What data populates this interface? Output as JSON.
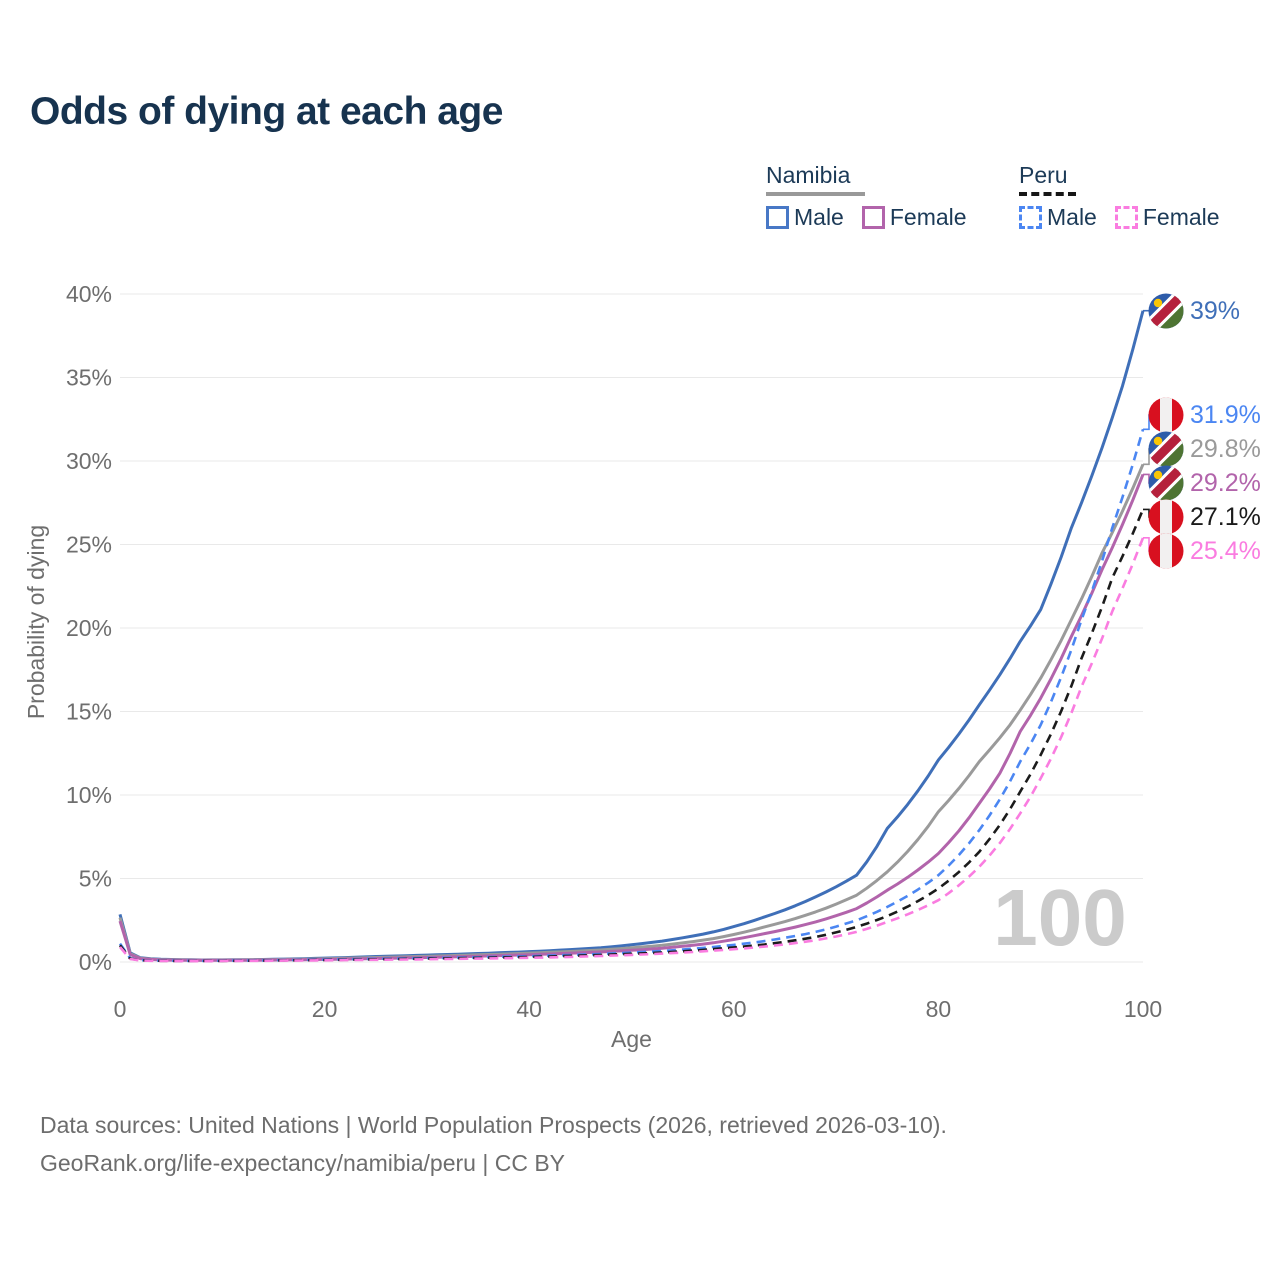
{
  "title": "Odds of dying at each age",
  "legend": {
    "groups": [
      {
        "country": "Namibia",
        "line_style": "solid",
        "underline_color": "#999999",
        "items": [
          {
            "label": "Male",
            "color": "#4878c6"
          },
          {
            "label": "Female",
            "color": "#b264ab"
          }
        ]
      },
      {
        "country": "Peru",
        "line_style": "dashed",
        "underline_color": "#161616",
        "items": [
          {
            "label": "Male",
            "color": "#4b86f2"
          },
          {
            "label": "Female",
            "color": "#fa7ce0"
          }
        ]
      }
    ]
  },
  "watermark": "100",
  "footer": {
    "line1": "Data sources: United Nations | World Population Prospects (2026, retrieved 2026-03-10).",
    "line2": "GeoRank.org/life-expectancy/namibia/peru | CC BY"
  },
  "chart_data": {
    "type": "line",
    "title": "Odds of dying at each age",
    "xlabel": "Age",
    "ylabel": "Probability of dying",
    "x_ticks": [
      0,
      20,
      40,
      60,
      80,
      100
    ],
    "y_ticks_percent": [
      0,
      5,
      10,
      15,
      20,
      25,
      30,
      35,
      40
    ],
    "xlim": [
      0,
      100
    ],
    "ylim_percent": [
      0,
      40
    ],
    "grid": true,
    "legend_position": "top-right",
    "series": [
      {
        "name": "Namibia male",
        "flag": "na",
        "color": "#3f6fb8",
        "dashed": false,
        "end_value_percent": 39.0,
        "end_label": "39%",
        "points_age_percent": [
          [
            0,
            2.85
          ],
          [
            1,
            0.55
          ],
          [
            2,
            0.25
          ],
          [
            4,
            0.16
          ],
          [
            8,
            0.12
          ],
          [
            13,
            0.14
          ],
          [
            18,
            0.2
          ],
          [
            25,
            0.33
          ],
          [
            32,
            0.45
          ],
          [
            40,
            0.62
          ],
          [
            47,
            0.85
          ],
          [
            53,
            1.25
          ],
          [
            58,
            1.8
          ],
          [
            63,
            2.7
          ],
          [
            68,
            3.9
          ],
          [
            72,
            5.2
          ],
          [
            75,
            8.0
          ],
          [
            80,
            12.1
          ],
          [
            84,
            15.4
          ],
          [
            88,
            19.2
          ],
          [
            90,
            21.1
          ],
          [
            93,
            26.0
          ],
          [
            96,
            30.8
          ],
          [
            98,
            34.5
          ],
          [
            100,
            39.0
          ]
        ]
      },
      {
        "name": "Namibia both sexes",
        "flag": "na",
        "color": "#9a9a9a",
        "dashed": false,
        "end_value_percent": 29.8,
        "end_label": "29.8%",
        "points_age_percent": [
          [
            0,
            2.65
          ],
          [
            1,
            0.5
          ],
          [
            2,
            0.22
          ],
          [
            4,
            0.14
          ],
          [
            8,
            0.11
          ],
          [
            13,
            0.13
          ],
          [
            18,
            0.17
          ],
          [
            25,
            0.27
          ],
          [
            32,
            0.38
          ],
          [
            40,
            0.53
          ],
          [
            47,
            0.72
          ],
          [
            53,
            1.0
          ],
          [
            58,
            1.4
          ],
          [
            63,
            2.1
          ],
          [
            68,
            3.0
          ],
          [
            72,
            4.0
          ],
          [
            75,
            5.4
          ],
          [
            80,
            9.0
          ],
          [
            84,
            12.0
          ],
          [
            87,
            14.2
          ],
          [
            90,
            17.0
          ],
          [
            93,
            20.5
          ],
          [
            96,
            24.5
          ],
          [
            98,
            27.0
          ],
          [
            100,
            29.8
          ]
        ]
      },
      {
        "name": "Namibia female",
        "flag": "na",
        "color": "#b264ab",
        "dashed": false,
        "end_value_percent": 29.2,
        "end_label": "29.2%",
        "points_age_percent": [
          [
            0,
            2.45
          ],
          [
            1,
            0.45
          ],
          [
            2,
            0.2
          ],
          [
            4,
            0.12
          ],
          [
            8,
            0.1
          ],
          [
            13,
            0.11
          ],
          [
            18,
            0.14
          ],
          [
            25,
            0.21
          ],
          [
            32,
            0.3
          ],
          [
            40,
            0.44
          ],
          [
            47,
            0.6
          ],
          [
            53,
            0.82
          ],
          [
            58,
            1.15
          ],
          [
            63,
            1.7
          ],
          [
            68,
            2.4
          ],
          [
            72,
            3.2
          ],
          [
            75,
            4.3
          ],
          [
            80,
            6.5
          ],
          [
            84,
            9.5
          ],
          [
            86,
            11.3
          ],
          [
            88,
            13.8
          ],
          [
            90,
            15.8
          ],
          [
            93,
            19.5
          ],
          [
            96,
            23.5
          ],
          [
            98,
            26.2
          ],
          [
            100,
            29.2
          ]
        ]
      },
      {
        "name": "Peru male",
        "flag": "pe",
        "color": "#4b86f2",
        "dashed": true,
        "end_value_percent": 31.9,
        "end_label": "31.9%",
        "points_age_percent": [
          [
            0,
            1.1
          ],
          [
            1,
            0.22
          ],
          [
            2,
            0.11
          ],
          [
            4,
            0.08
          ],
          [
            8,
            0.07
          ],
          [
            13,
            0.09
          ],
          [
            18,
            0.13
          ],
          [
            25,
            0.19
          ],
          [
            32,
            0.25
          ],
          [
            40,
            0.35
          ],
          [
            47,
            0.48
          ],
          [
            53,
            0.66
          ],
          [
            58,
            0.9
          ],
          [
            63,
            1.25
          ],
          [
            68,
            1.8
          ],
          [
            72,
            2.5
          ],
          [
            75,
            3.3
          ],
          [
            80,
            5.2
          ],
          [
            84,
            7.9
          ],
          [
            88,
            12.0
          ],
          [
            90,
            14.2
          ],
          [
            94,
            20.5
          ],
          [
            97,
            26.0
          ],
          [
            100,
            31.9
          ]
        ]
      },
      {
        "name": "Peru both sexes",
        "flag": "pe",
        "color": "#1b1b1b",
        "dashed": true,
        "end_value_percent": 27.1,
        "end_label": "27.1%",
        "points_age_percent": [
          [
            0,
            1.0
          ],
          [
            1,
            0.2
          ],
          [
            2,
            0.1
          ],
          [
            4,
            0.07
          ],
          [
            8,
            0.06
          ],
          [
            13,
            0.08
          ],
          [
            18,
            0.11
          ],
          [
            25,
            0.16
          ],
          [
            32,
            0.22
          ],
          [
            40,
            0.3
          ],
          [
            47,
            0.42
          ],
          [
            53,
            0.57
          ],
          [
            58,
            0.77
          ],
          [
            63,
            1.05
          ],
          [
            68,
            1.5
          ],
          [
            72,
            2.1
          ],
          [
            75,
            2.75
          ],
          [
            80,
            4.4
          ],
          [
            84,
            6.6
          ],
          [
            88,
            10.2
          ],
          [
            90,
            12.4
          ],
          [
            94,
            18.2
          ],
          [
            97,
            23.0
          ],
          [
            100,
            27.1
          ]
        ]
      },
      {
        "name": "Peru female",
        "flag": "pe",
        "color": "#fa7ce0",
        "dashed": true,
        "end_value_percent": 25.4,
        "end_label": "25.4%",
        "points_age_percent": [
          [
            0,
            0.9
          ],
          [
            1,
            0.18
          ],
          [
            2,
            0.09
          ],
          [
            4,
            0.06
          ],
          [
            8,
            0.05
          ],
          [
            13,
            0.07
          ],
          [
            18,
            0.09
          ],
          [
            25,
            0.13
          ],
          [
            32,
            0.18
          ],
          [
            40,
            0.25
          ],
          [
            47,
            0.36
          ],
          [
            53,
            0.5
          ],
          [
            58,
            0.68
          ],
          [
            63,
            0.92
          ],
          [
            68,
            1.3
          ],
          [
            72,
            1.8
          ],
          [
            75,
            2.4
          ],
          [
            80,
            3.7
          ],
          [
            84,
            5.7
          ],
          [
            88,
            8.9
          ],
          [
            90,
            11.0
          ],
          [
            94,
            16.5
          ],
          [
            97,
            21.0
          ],
          [
            100,
            25.4
          ]
        ]
      }
    ]
  }
}
